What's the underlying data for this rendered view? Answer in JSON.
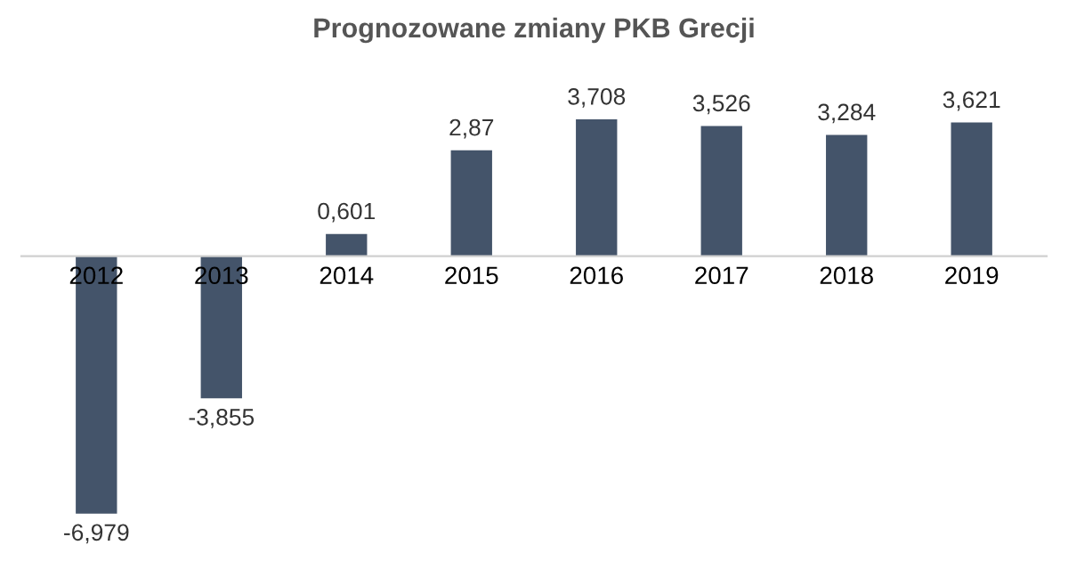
{
  "chart_data": {
    "type": "bar",
    "title": "Prognozowane zmiany PKB Grecji",
    "categories": [
      "2012",
      "2013",
      "2014",
      "2015",
      "2016",
      "2017",
      "2018",
      "2019"
    ],
    "values": [
      -6.979,
      -3.855,
      0.601,
      2.87,
      3.708,
      3.526,
      3.284,
      3.621
    ],
    "value_labels": [
      "-6,979",
      "-3,855",
      "0,601",
      "2,87",
      "3,708",
      "3,526",
      "3,284",
      "3,621"
    ],
    "color": "#44546a",
    "grid": false,
    "legend": false
  }
}
